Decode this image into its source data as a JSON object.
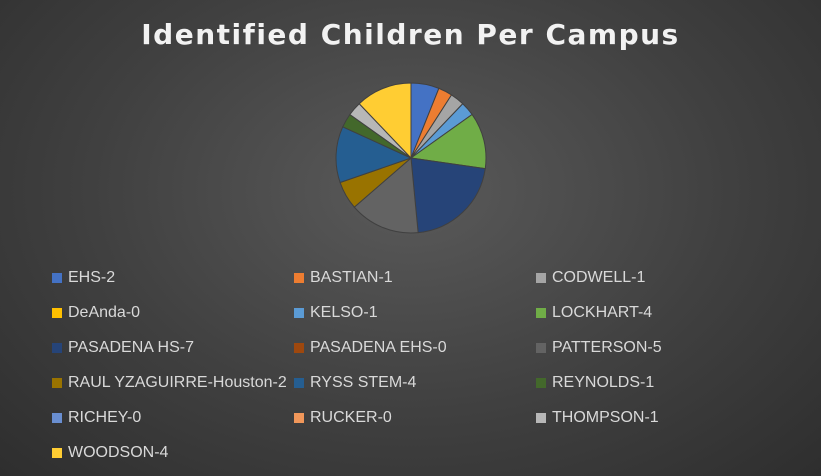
{
  "chart_data": {
    "type": "pie",
    "title": "Identified Children Per Campus",
    "legend_position": "bottom",
    "categories": [
      "EHS-2",
      "BASTIAN-1",
      "CODWELL-1",
      "DeAnda-0",
      "KELSO-1",
      "LOCKHART-4",
      "PASADENA HS-7",
      "PASADENA EHS-0",
      "PATTERSON-5",
      "RAUL YZAGUIRRE-Houston-2",
      "RYSS STEM-4",
      "REYNOLDS-1",
      "RICHEY-0",
      "RUCKER-0",
      "THOMPSON-1",
      "WOODSON-4"
    ],
    "values": [
      2,
      1,
      1,
      0,
      1,
      4,
      7,
      0,
      5,
      2,
      4,
      1,
      0,
      0,
      1,
      4
    ],
    "colors": [
      "#4472c4",
      "#ed7d31",
      "#a5a5a5",
      "#ffc000",
      "#5b9bd5",
      "#70ad47",
      "#264478",
      "#9e480e",
      "#636363",
      "#997300",
      "#255e91",
      "#43682b",
      "#698ed0",
      "#f1975a",
      "#b7b7b7",
      "#ffcd33"
    ]
  }
}
